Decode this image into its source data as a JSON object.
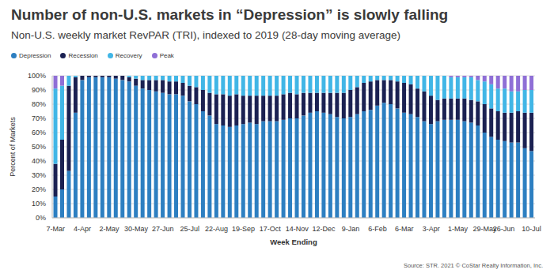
{
  "chart_data": {
    "type": "bar",
    "stacked": true,
    "grid": true,
    "legend": "top-left",
    "title": "Number of non-U.S. markets in “Depression” is slowly falling",
    "subtitle": "Non-U.S. weekly market RevPAR (TRI), indexed to 2019 (28-day moving average)",
    "x_label": "Week Ending",
    "y_label": "Percent of Markets",
    "source": "Source: STR. 2021 © CoStar Realty Information, Inc.",
    "categories": [
      "7-Mar",
      null,
      null,
      null,
      "4-Apr",
      null,
      null,
      null,
      "2-May",
      null,
      null,
      null,
      "30-May",
      null,
      null,
      null,
      "27-Jun",
      null,
      null,
      null,
      "25-Jul",
      null,
      null,
      null,
      "22-Aug",
      null,
      null,
      null,
      "19-Sep",
      null,
      null,
      null,
      "17-Oct",
      null,
      null,
      null,
      "14-Nov",
      null,
      null,
      null,
      "12-Dec",
      null,
      null,
      null,
      "9-Jan",
      null,
      null,
      null,
      "6-Feb",
      null,
      null,
      null,
      "6-Mar",
      null,
      null,
      null,
      "3-Apr",
      null,
      null,
      null,
      "1-May",
      null,
      null,
      null,
      "29-May",
      null,
      null,
      null,
      "26-Jun",
      null,
      "10-Jul",
      null
    ],
    "ylim": [
      0,
      100
    ],
    "yticks": [
      {
        "value": 0,
        "label": "0%"
      },
      {
        "value": 10,
        "label": "10%"
      },
      {
        "value": 20,
        "label": "20%"
      },
      {
        "value": 30,
        "label": "30%"
      },
      {
        "value": 40,
        "label": "40%"
      },
      {
        "value": 50,
        "label": "50%"
      },
      {
        "value": 60,
        "label": "60%"
      },
      {
        "value": 70,
        "label": "70%"
      },
      {
        "value": 80,
        "label": "80%"
      },
      {
        "value": 90,
        "label": "90%"
      },
      {
        "value": 100,
        "label": "100%"
      }
    ],
    "series": [
      {
        "name": "Depression",
        "color": "#2d7fc1",
        "values": [
          15,
          20,
          33,
          74,
          97,
          99,
          99,
          99,
          99,
          98,
          97,
          96,
          93,
          91,
          90,
          89,
          88,
          87,
          87,
          86,
          82,
          80,
          75,
          72,
          66,
          65,
          64,
          65,
          66,
          67,
          66,
          68,
          68,
          68,
          69,
          70,
          70,
          72,
          74,
          75,
          74,
          73,
          71,
          70,
          71,
          73,
          75,
          76,
          79,
          81,
          80,
          77,
          74,
          73,
          71,
          68,
          66,
          68,
          69,
          69,
          69,
          68,
          67,
          65,
          60,
          57,
          55,
          54,
          53,
          53,
          49,
          47
        ]
      },
      {
        "name": "Recession",
        "color": "#1b2152",
        "values": [
          23,
          35,
          60,
          25,
          3,
          1,
          1,
          1,
          1,
          2,
          3,
          3,
          5,
          6,
          7,
          8,
          9,
          9,
          9,
          9,
          11,
          12,
          15,
          16,
          21,
          22,
          22,
          22,
          20,
          19,
          20,
          18,
          18,
          18,
          18,
          18,
          17,
          16,
          14,
          13,
          14,
          15,
          17,
          18,
          19,
          19,
          20,
          20,
          18,
          16,
          17,
          19,
          21,
          21,
          20,
          21,
          20,
          15,
          15,
          15,
          15,
          16,
          16,
          17,
          20,
          20,
          20,
          20,
          21,
          22,
          25,
          27
        ]
      },
      {
        "name": "Recovery",
        "color": "#41b6e6",
        "values": [
          53,
          38,
          7,
          1,
          0,
          0,
          0,
          0,
          0,
          0,
          0,
          1,
          2,
          3,
          3,
          3,
          3,
          4,
          4,
          5,
          7,
          8,
          10,
          12,
          13,
          13,
          14,
          13,
          14,
          14,
          14,
          14,
          14,
          14,
          13,
          12,
          13,
          12,
          12,
          12,
          12,
          12,
          12,
          12,
          10,
          8,
          5,
          4,
          3,
          3,
          3,
          4,
          5,
          6,
          9,
          11,
          14,
          17,
          16,
          15,
          15,
          15,
          16,
          15,
          16,
          17,
          16,
          17,
          15,
          14,
          16,
          16
        ]
      },
      {
        "name": "Peak",
        "color": "#8f6fd6",
        "values": [
          9,
          7,
          0,
          0,
          0,
          0,
          0,
          0,
          0,
          0,
          0,
          0,
          0,
          0,
          0,
          0,
          0,
          0,
          0,
          0,
          0,
          0,
          0,
          0,
          0,
          0,
          0,
          0,
          0,
          0,
          0,
          0,
          0,
          0,
          0,
          0,
          0,
          0,
          0,
          0,
          0,
          0,
          0,
          0,
          0,
          0,
          0,
          0,
          0,
          0,
          0,
          0,
          0,
          0,
          0,
          0,
          0,
          0,
          0,
          1,
          1,
          1,
          1,
          3,
          4,
          6,
          9,
          9,
          11,
          11,
          10,
          10
        ]
      }
    ]
  }
}
